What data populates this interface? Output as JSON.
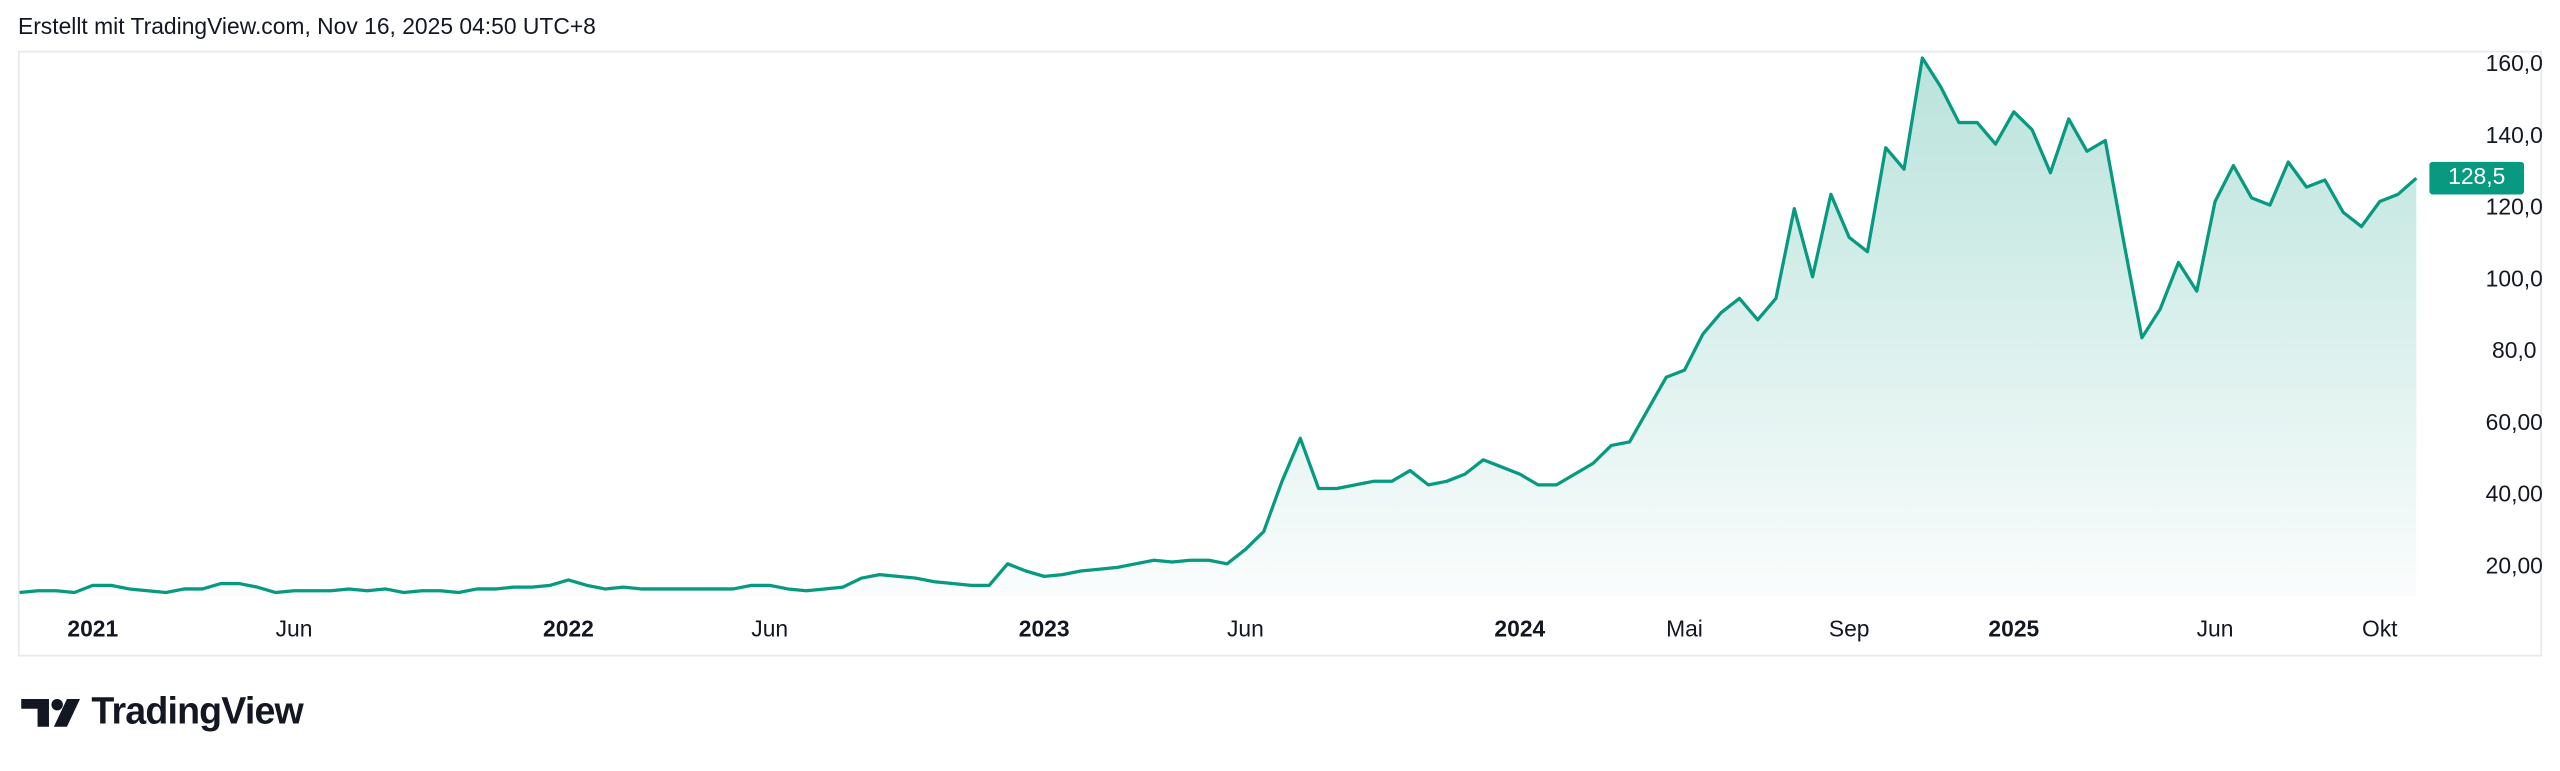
{
  "header": {
    "text": "Erstellt mit TradingView.com, Nov 16, 2025 04:50 UTC+8"
  },
  "footer": {
    "brand": "TradingView"
  },
  "chart_data": {
    "type": "area",
    "color": "#089981",
    "categories": [
      null,
      null,
      null,
      null,
      "2021",
      null,
      null,
      null,
      null,
      null,
      null,
      null,
      null,
      null,
      null,
      "Jun",
      null,
      null,
      null,
      null,
      null,
      null,
      null,
      null,
      null,
      null,
      null,
      null,
      null,
      null,
      "2022",
      null,
      null,
      null,
      null,
      null,
      null,
      null,
      null,
      null,
      null,
      "Jun",
      null,
      null,
      null,
      null,
      null,
      null,
      null,
      null,
      null,
      null,
      null,
      null,
      null,
      null,
      "2023",
      null,
      null,
      null,
      null,
      null,
      null,
      null,
      null,
      null,
      null,
      "Jun",
      null,
      null,
      null,
      null,
      null,
      null,
      null,
      null,
      null,
      null,
      null,
      null,
      null,
      null,
      "2024",
      null,
      null,
      null,
      null,
      null,
      null,
      null,
      null,
      "Mai",
      null,
      null,
      null,
      null,
      null,
      null,
      null,
      null,
      "Sep",
      null,
      null,
      null,
      null,
      null,
      null,
      null,
      null,
      "2025",
      null,
      null,
      null,
      null,
      null,
      null,
      null,
      null,
      null,
      null,
      "Jun",
      null,
      null,
      null,
      null,
      null,
      null,
      null,
      null,
      "Okt",
      null,
      null
    ],
    "values": [
      13,
      13.5,
      13.5,
      13,
      15,
      15,
      14,
      13.5,
      13,
      14,
      14,
      15.5,
      15.5,
      14.5,
      13,
      13.5,
      13.5,
      13.5,
      14,
      13.5,
      14,
      13,
      13.5,
      13.5,
      13,
      14,
      14,
      14.5,
      14.5,
      15,
      16.5,
      15,
      14,
      14.5,
      14,
      14,
      14,
      14,
      14,
      14,
      15,
      15,
      14,
      13.5,
      14,
      14.5,
      17,
      18,
      17.5,
      17,
      16,
      15.5,
      15,
      15,
      21,
      19,
      17.5,
      18,
      19,
      19.5,
      20,
      21,
      22,
      21.5,
      22,
      22,
      21,
      25,
      30,
      44,
      56,
      42,
      42,
      43,
      44,
      44,
      47,
      43,
      44,
      46,
      50,
      48,
      46,
      43,
      43,
      46,
      49,
      54,
      55,
      64,
      73,
      75,
      85,
      91,
      95,
      89,
      95,
      120,
      101,
      124,
      112,
      108,
      137,
      131,
      162,
      154,
      144,
      144,
      138,
      147,
      142,
      130,
      145,
      136,
      139,
      111,
      84,
      92,
      105,
      97,
      122,
      132,
      123,
      121,
      133,
      126,
      128,
      119,
      115,
      122,
      124,
      128.5
    ],
    "value_labels": [
      null,
      null,
      null,
      null,
      null,
      null,
      null,
      null,
      null,
      null,
      null,
      null,
      null,
      null,
      null,
      null,
      null,
      null,
      null,
      null,
      null,
      null,
      null,
      null,
      null,
      null,
      null,
      null,
      null,
      null,
      null,
      null,
      null,
      null,
      null,
      null,
      null,
      null,
      null,
      null,
      null,
      null,
      null,
      null,
      null,
      null,
      null,
      null,
      null,
      null,
      null,
      null,
      null,
      null,
      null,
      null,
      null,
      null,
      null,
      null,
      null,
      null,
      null,
      null,
      null,
      null,
      null,
      null,
      null,
      null,
      null,
      null,
      null,
      null,
      null,
      null,
      null,
      null,
      null,
      null,
      null,
      null,
      null,
      null,
      null,
      null,
      null,
      null,
      null,
      null,
      null,
      null,
      null,
      null,
      null,
      null,
      null,
      null,
      null,
      null,
      null,
      null,
      null,
      null,
      null,
      null,
      null,
      null,
      null,
      null,
      null,
      null,
      null,
      null,
      null,
      null,
      null,
      null,
      null,
      null,
      null,
      null,
      null,
      null,
      null,
      null,
      null,
      null,
      null,
      null,
      null,
      "128,5"
    ],
    "ylim": [
      12,
      164
    ],
    "yticks": [
      {
        "value": 20,
        "label": "20,00"
      },
      {
        "value": 40,
        "label": "40,00"
      },
      {
        "value": 60,
        "label": "60,00"
      },
      {
        "value": 80,
        "label": "80,0"
      },
      {
        "value": 100,
        "label": "100,0"
      },
      {
        "value": 120,
        "label": "120,0"
      },
      {
        "value": 140,
        "label": "140,0"
      },
      {
        "value": 160,
        "label": "160,0"
      }
    ]
  }
}
